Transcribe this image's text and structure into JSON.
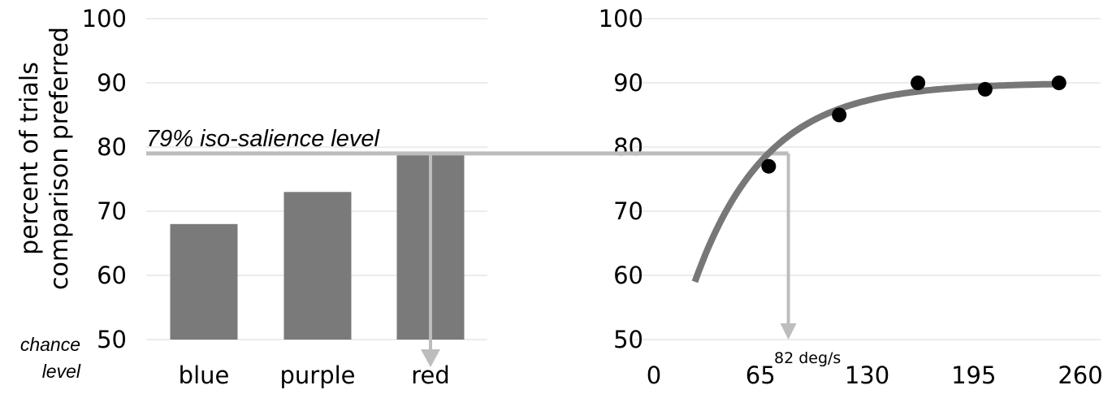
{
  "chart_data": [
    {
      "type": "bar",
      "ylabel_line1": "percent of trials",
      "ylabel_line2": "comparison preferred",
      "ylim": [
        50,
        100
      ],
      "yticks": [
        50,
        60,
        70,
        80,
        90,
        100
      ],
      "categories": [
        "blue",
        "purple",
        "red"
      ],
      "values": [
        68,
        73,
        79
      ],
      "bar_color": "#7a7a7a",
      "chance_label_line1": "chance",
      "chance_label_line2": "level",
      "grid": true
    },
    {
      "type": "scatter",
      "ylim": [
        50,
        100
      ],
      "yticks": [
        50,
        60,
        70,
        80,
        90,
        100
      ],
      "xlim": [
        0,
        260
      ],
      "xticks": [
        0,
        65,
        130,
        195,
        260
      ],
      "points": [
        {
          "x": 70,
          "y": 77
        },
        {
          "x": 113,
          "y": 85
        },
        {
          "x": 161,
          "y": 90
        },
        {
          "x": 202,
          "y": 89
        },
        {
          "x": 247,
          "y": 90
        }
      ],
      "fit_curve": {
        "asymptote": 90,
        "amplitude": 31,
        "x0": 25,
        "rate": 0.0231
      },
      "grid": true
    }
  ],
  "iso_level": {
    "label": "79% iso-salience level",
    "value": 79,
    "line_color": "#bdbdbd"
  },
  "threshold_label": "82 deg/s",
  "threshold_value": 82
}
